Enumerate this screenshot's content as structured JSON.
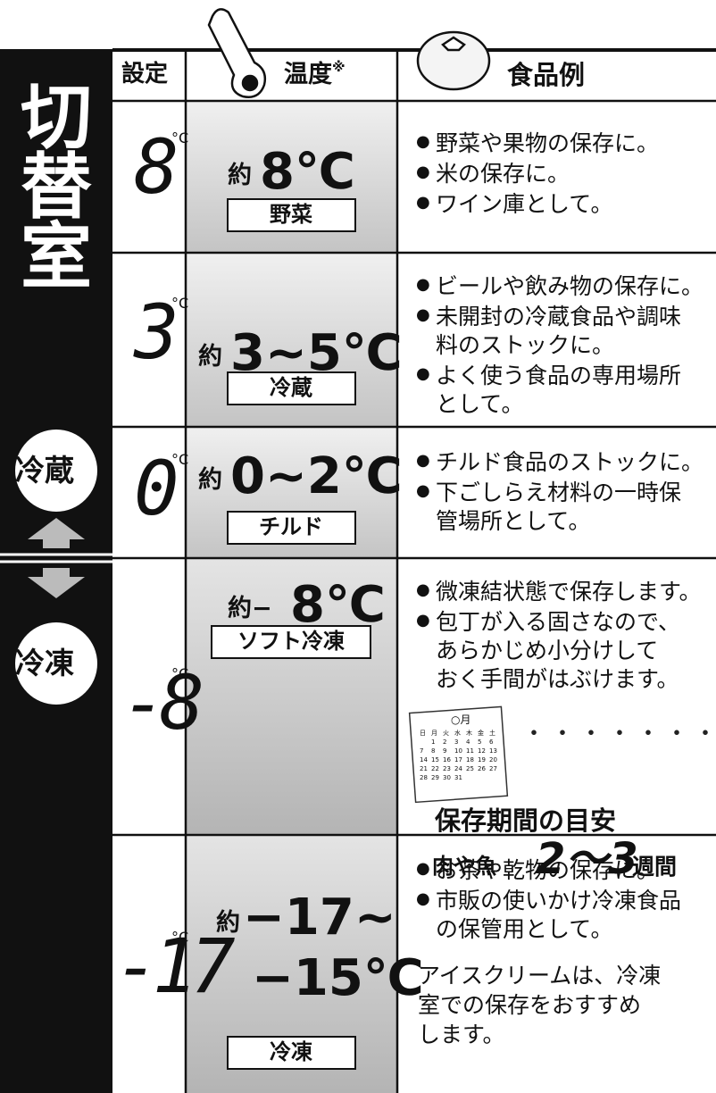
{
  "header": {
    "setting": "設定",
    "temperature": "温度",
    "note_mark": "※",
    "foods": "食品例"
  },
  "side": {
    "switch_room": "切替室",
    "fridge": "冷蔵",
    "freezer": "冷凍"
  },
  "rows": [
    {
      "setting": "8",
      "unit": "°C",
      "prefix": "約",
      "temp": [
        "8℃"
      ],
      "mode": "野菜",
      "foods": [
        [
          "野菜や果物の保存に。"
        ],
        [
          "米の保存に。"
        ],
        [
          "ワイン庫として。"
        ]
      ]
    },
    {
      "setting": "3",
      "unit": "°C",
      "prefix": "約",
      "temp": [
        "3~5℃"
      ],
      "mode": "冷蔵",
      "foods": [
        [
          "ビールや飲み物の保存に。"
        ],
        [
          "未開封の冷蔵食品や調味",
          "料のストックに。"
        ],
        [
          "よく使う食品の専用場所",
          "として。"
        ]
      ]
    },
    {
      "setting": "0",
      "unit": "°C",
      "prefix": "約",
      "temp": [
        "0~2℃"
      ],
      "mode": "チルド",
      "foods": [
        [
          "チルド食品のストックに。"
        ],
        [
          "下ごしらえ材料の一時保",
          "管場所として。"
        ]
      ]
    },
    {
      "setting": "-8",
      "unit": "°C",
      "prefix": "約−",
      "temp": [
        "8℃"
      ],
      "mode": "ソフト冷凍",
      "foods": [
        [
          "微凍結状態で保存します。"
        ],
        [
          "包丁が入る固さなので、",
          "あらかじめ小分けして",
          "おく手間がはぶけます。"
        ]
      ]
    },
    {
      "setting": "-17",
      "unit": "°C",
      "prefix": "約",
      "temp": [
        "−17~",
        "−15℃"
      ],
      "mode": "冷凍",
      "foods": [
        [
          "お茶や乾物の保存に。"
        ],
        [
          "市販の使いかけ冷凍食品",
          "の保管用として。"
        ]
      ],
      "note": [
        "アイスクリームは、冷凍",
        "室での保存をおすすめ",
        "します。"
      ]
    }
  ],
  "calendar": {
    "month": "○月",
    "weekdays": [
      "日",
      "月",
      "火",
      "水",
      "木",
      "金",
      "土"
    ],
    "weeks": [
      [
        1,
        2,
        3,
        4,
        5,
        6
      ],
      [
        7,
        8,
        9,
        10,
        11,
        12,
        13
      ],
      [
        14,
        15,
        16,
        17,
        18,
        19,
        20
      ],
      [
        21,
        22,
        23,
        24,
        25,
        26,
        27
      ],
      [
        28,
        29,
        30,
        31
      ]
    ]
  },
  "storage": {
    "title": "保存期間の目安",
    "food": "肉や魚",
    "period": "2〜3",
    "unit": "週間"
  }
}
